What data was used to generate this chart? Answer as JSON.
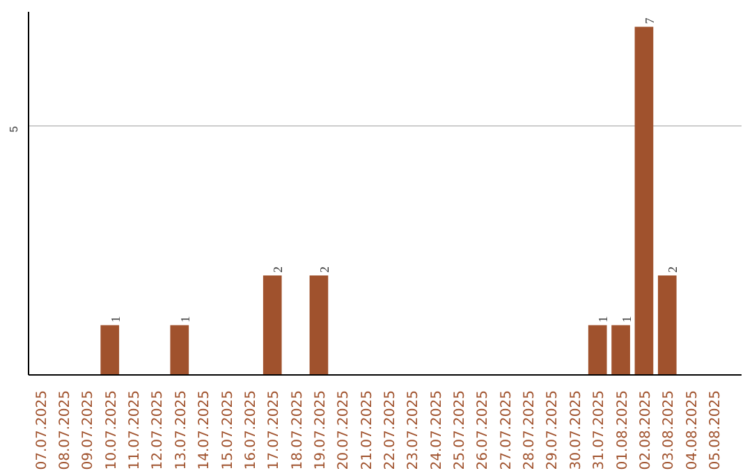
{
  "chart_data": {
    "type": "bar",
    "categories": [
      "07.07.2025",
      "08.07.2025",
      "09.07.2025",
      "10.07.2025",
      "11.07.2025",
      "12.07.2025",
      "13.07.2025",
      "14.07.2025",
      "15.07.2025",
      "16.07.2025",
      "17.07.2025",
      "18.07.2025",
      "19.07.2025",
      "20.07.2025",
      "21.07.2025",
      "22.07.2025",
      "23.07.2025",
      "24.07.2025",
      "25.07.2025",
      "26.07.2025",
      "27.07.2025",
      "28.07.2025",
      "29.07.2025",
      "30.07.2025",
      "31.07.2025",
      "01.08.2025",
      "02.08.2025",
      "03.08.2025",
      "04.08.2025",
      "05.08.2025"
    ],
    "values": [
      0,
      0,
      0,
      1,
      0,
      0,
      1,
      0,
      0,
      0,
      2,
      0,
      2,
      0,
      0,
      0,
      0,
      0,
      0,
      0,
      0,
      0,
      0,
      0,
      1,
      1,
      7,
      2,
      0,
      0
    ],
    "value_labels": [
      null,
      null,
      null,
      "1",
      null,
      null,
      "1",
      null,
      null,
      null,
      "2",
      null,
      "2",
      null,
      null,
      null,
      null,
      null,
      null,
      null,
      null,
      null,
      null,
      null,
      "1",
      "1",
      "7",
      "2",
      null,
      null
    ],
    "color": "#a0522d",
    "ylim": [
      0,
      7.3
    ],
    "yticks": [
      5
    ],
    "grid": "y"
  }
}
